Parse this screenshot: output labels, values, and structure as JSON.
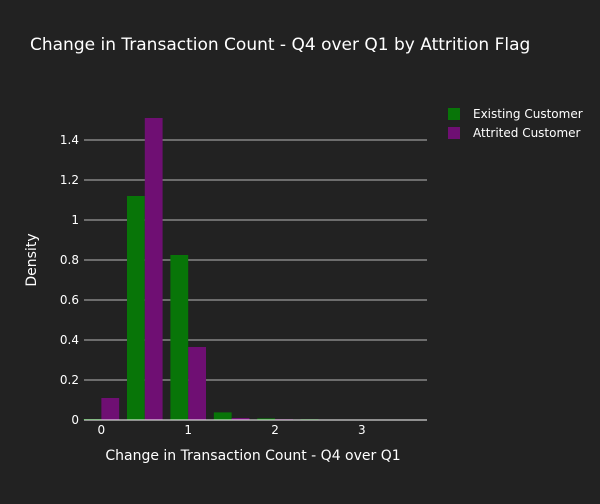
{
  "chart_data": {
    "type": "bar",
    "title": "Change in Transaction Count - Q4 over Q1 by Attrition Flag",
    "xlabel": "Change in Transaction Count - Q4 over Q1",
    "ylabel": "Density",
    "xlim": [
      -0.2,
      3.75
    ],
    "ylim": [
      0,
      1.5
    ],
    "bin_width": 0.5,
    "x_ticks": [
      0,
      1,
      2,
      3
    ],
    "y_ticks": [
      0,
      0.2,
      0.4,
      0.6,
      0.8,
      1,
      1.2,
      1.4
    ],
    "y_tick_labels": [
      "0",
      "0.2",
      "0.4",
      "0.6",
      "0.8",
      "1",
      "1.2",
      "1.4"
    ],
    "grid": true,
    "legend_position": "top-right",
    "bins": [
      0,
      0.5,
      1,
      1.5,
      2,
      2.5,
      3,
      3.5
    ],
    "series": [
      {
        "name": "Existing Customer",
        "color": "#087508",
        "values": [
          0.005,
          1.12,
          0.825,
          0.038,
          0.008,
          0.004,
          0.002,
          0.001
        ]
      },
      {
        "name": "Attrited Customer",
        "color": "#6f0f73",
        "values": [
          0.11,
          1.51,
          0.365,
          0.01,
          0.004,
          0.002,
          0.001,
          0.0
        ]
      }
    ]
  }
}
